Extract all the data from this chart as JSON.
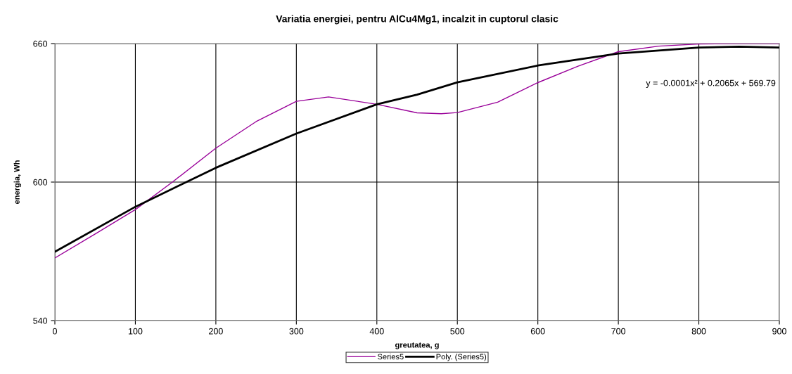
{
  "chart_data": {
    "type": "line",
    "title": "Variatia energiei, pentru AlCu4Mg1, incalzit in cuptorul clasic",
    "xlabel": "greutatea, g",
    "ylabel": "energia, Wh",
    "series": [
      {
        "name": "Series5",
        "color": "#990099",
        "x": [
          0,
          50,
          100,
          146,
          200,
          250,
          300,
          340,
          400,
          450,
          480,
          500,
          550,
          600,
          650,
          700,
          750,
          800,
          850,
          900
        ],
        "values": [
          567.1,
          577.5,
          588.1,
          600,
          614.7,
          626.2,
          635.0,
          636.9,
          633.7,
          630.0,
          629.6,
          630.1,
          634.6,
          643.1,
          650.2,
          656.5,
          658.9,
          659.8,
          660,
          660
        ]
      },
      {
        "name": "Poly. (Series5)",
        "color": "#000000",
        "x": [
          0,
          100,
          200,
          300,
          400,
          450,
          500,
          600,
          700,
          800,
          850,
          900
        ],
        "values": [
          569.8,
          589.3,
          606.2,
          621.0,
          633.7,
          637.9,
          643.2,
          650.5,
          655.7,
          658.3,
          658.7,
          658.3
        ]
      }
    ],
    "annotations": [
      "y = -0.0001x² + 0.2065x + 569.79"
    ],
    "xlim": [
      0,
      900
    ],
    "xticks": [
      0,
      100,
      200,
      300,
      400,
      500,
      600,
      700,
      800,
      900
    ],
    "ylim": [
      540,
      660
    ],
    "yticks": [
      540,
      600,
      660
    ],
    "grid": true,
    "legend": "bottom",
    "marker": "none",
    "line_style": "solid"
  }
}
